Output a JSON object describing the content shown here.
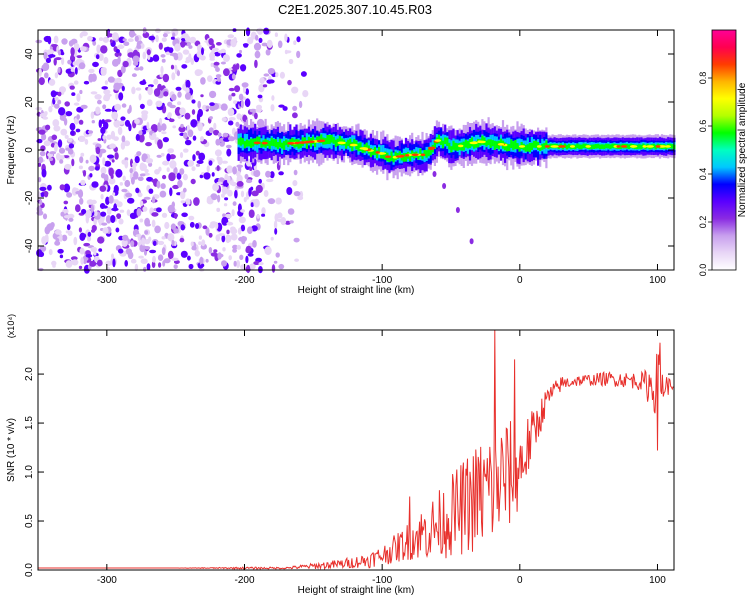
{
  "chart_data": [
    {
      "type": "heatmap",
      "title": "C2E1.2025.307.10.45.R03",
      "xlabel": "Height of straight line (km)",
      "ylabel": "Frequency (Hz)",
      "xlim": [
        -350,
        112
      ],
      "ylim": [
        -50,
        50
      ],
      "xticks": [
        -300,
        -200,
        -100,
        0,
        100
      ],
      "yticks": [
        -40,
        -20,
        0,
        20,
        40
      ],
      "colorbar": {
        "label": "Normalized spectral amplitude",
        "range": [
          0,
          1
        ],
        "ticks": [
          "0.0",
          "0.2",
          "0.4",
          "0.6",
          "0.8"
        ],
        "tick_values": [
          0.0,
          0.2,
          0.4,
          0.6,
          0.8
        ],
        "colors": [
          "#ffffff",
          "#e8d6f6",
          "#c8a0ee",
          "#8a2be2",
          "#5a00ff",
          "#0000ff",
          "#00c8ff",
          "#00ffc0",
          "#00ff00",
          "#b4ff00",
          "#ffff00",
          "#ffb400",
          "#ff3c00",
          "#ff0050",
          "#ff0096"
        ]
      },
      "signal_band_center_hz": [
        [
          -205,
          3
        ],
        [
          -190,
          3
        ],
        [
          -175,
          2.5
        ],
        [
          -160,
          3
        ],
        [
          -150,
          3.5
        ],
        [
          -140,
          4
        ],
        [
          -130,
          3
        ],
        [
          -120,
          2
        ],
        [
          -110,
          0
        ],
        [
          -100,
          -1.5
        ],
        [
          -95,
          -3
        ],
        [
          -90,
          -3
        ],
        [
          -80,
          -2
        ],
        [
          -70,
          -2
        ],
        [
          -65,
          0
        ],
        [
          -60,
          4
        ],
        [
          -55,
          3
        ],
        [
          -50,
          1
        ],
        [
          -40,
          2
        ],
        [
          -30,
          3.5
        ],
        [
          -20,
          3
        ],
        [
          -10,
          2
        ],
        [
          0,
          1.5
        ],
        [
          20,
          1.5
        ],
        [
          60,
          1.5
        ],
        [
          112,
          1.5
        ]
      ],
      "tail_feature_hz": [
        [
          -62,
          -10
        ],
        [
          -55,
          -15
        ],
        [
          -45,
          -25
        ],
        [
          -35,
          -38
        ]
      ]
    },
    {
      "type": "line",
      "xlabel": "Height of straight line (km)",
      "ylabel": "SNR (10 * v/v)",
      "yscale_label": "(x10⁴)",
      "xlim": [
        -350,
        112
      ],
      "ylim": [
        0,
        2.45
      ],
      "xticks": [
        -300,
        -200,
        -100,
        0,
        100
      ],
      "yticks": [
        "0.0",
        "0.5",
        "1.0",
        "1.5",
        "2.0"
      ],
      "ytick_values": [
        0,
        0.5,
        1.0,
        1.5,
        2.0
      ],
      "series": [
        {
          "name": "SNR",
          "color": "#e8302c",
          "x": [
            -350,
            -250,
            -200,
            -170,
            -160,
            -150,
            -140,
            -130,
            -120,
            -110,
            -100,
            -90,
            -80,
            -70,
            -60,
            -50,
            -40,
            -30,
            -20,
            -10,
            0,
            10,
            20,
            30,
            40,
            50,
            60,
            70,
            80,
            90,
            95,
            100,
            105,
            112
          ],
          "mean": [
            0.02,
            0.02,
            0.02,
            0.02,
            0.03,
            0.04,
            0.05,
            0.06,
            0.08,
            0.1,
            0.15,
            0.22,
            0.3,
            0.38,
            0.45,
            0.55,
            0.65,
            0.75,
            0.85,
            0.95,
            1.05,
            1.4,
            1.75,
            1.9,
            1.93,
            1.94,
            1.95,
            1.95,
            1.94,
            1.92,
            1.88,
            1.9,
            1.88,
            1.88
          ],
          "spread": [
            0.0,
            0.0,
            0.01,
            0.01,
            0.02,
            0.03,
            0.04,
            0.05,
            0.06,
            0.08,
            0.1,
            0.15,
            0.2,
            0.28,
            0.35,
            0.42,
            0.5,
            0.58,
            0.65,
            0.6,
            0.45,
            0.25,
            0.12,
            0.08,
            0.06,
            0.06,
            0.07,
            0.08,
            0.08,
            0.1,
            0.25,
            0.35,
            0.15,
            0.02
          ],
          "peaks": [
            [
              -18,
              2.45
            ],
            [
              -80,
              0.75
            ],
            [
              -4,
              2.15
            ],
            [
              102,
              2.32
            ],
            [
              100,
              1.22
            ]
          ]
        }
      ]
    }
  ]
}
